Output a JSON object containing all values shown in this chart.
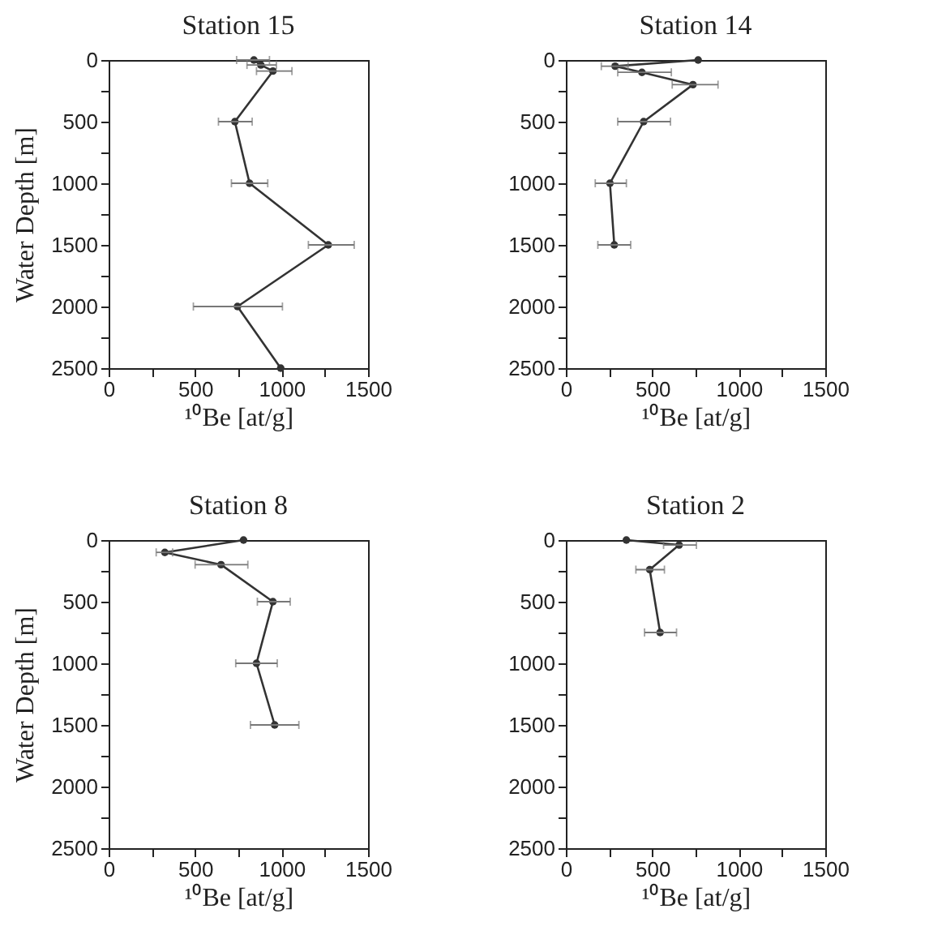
{
  "chart_data": [
    {
      "type": "line",
      "title": "Station 15",
      "xlabel": "¹⁰Be [at/g]",
      "ylabel": "Water Depth [m]",
      "color": "#333333",
      "marker": "circle",
      "line_style": "solid",
      "x": [
        840,
        880,
        950,
        730,
        815,
        1270,
        745,
        995
      ],
      "values": [
        0,
        40,
        90,
        500,
        1000,
        1500,
        2000,
        2500
      ],
      "xerrors": [
        [
          740,
          930
        ],
        [
          800,
          970
        ],
        [
          855,
          1060
        ],
        [
          635,
          830
        ],
        [
          710,
          920
        ],
        [
          1155,
          1420
        ],
        [
          490,
          1005
        ],
        null
      ],
      "xlim": [
        0,
        1500
      ],
      "xticks": [
        0,
        {
          "value": 250,
          "label": null
        },
        500,
        {
          "value": 750,
          "label": null
        },
        1000,
        {
          "value": 1250,
          "label": null
        },
        1500
      ],
      "ylim": [
        2500,
        0
      ],
      "yticks": [
        0,
        {
          "value": 250,
          "label": null
        },
        500,
        {
          "value": 750,
          "label": null
        },
        1000,
        {
          "value": 1250,
          "label": null
        },
        1500,
        {
          "value": 1750,
          "label": null
        },
        2000,
        {
          "value": 2250,
          "label": null
        },
        2500
      ]
    },
    {
      "type": "line",
      "title": "Station 14",
      "xlabel": "¹⁰Be [at/g]",
      "color": "#333333",
      "marker": "circle",
      "line_style": "solid",
      "x": [
        765,
        285,
        440,
        735,
        450,
        255,
        280
      ],
      "values": [
        0,
        50,
        100,
        200,
        500,
        1000,
        1500
      ],
      "xerrors": [
        null,
        [
          205,
          360
        ],
        [
          300,
          610
        ],
        [
          615,
          880
        ],
        [
          300,
          605
        ],
        [
          170,
          350
        ],
        [
          185,
          375
        ]
      ],
      "xlim": [
        0,
        1500
      ],
      "xticks": [
        0,
        {
          "value": 250,
          "label": null
        },
        500,
        {
          "value": 750,
          "label": null
        },
        1000,
        {
          "value": 1250,
          "label": null
        },
        1500
      ],
      "ylim": [
        2500,
        0
      ],
      "yticks": [
        0,
        {
          "value": 250,
          "label": null
        },
        500,
        {
          "value": 750,
          "label": null
        },
        1000,
        {
          "value": 1250,
          "label": null
        },
        1500,
        {
          "value": 1750,
          "label": null
        },
        2000,
        {
          "value": 2250,
          "label": null
        },
        2500
      ]
    },
    {
      "type": "line",
      "title": "Station 8",
      "xlabel": "¹⁰Be [at/g]",
      "ylabel": "Water Depth [m]",
      "color": "#333333",
      "marker": "circle",
      "line_style": "solid",
      "x": [
        780,
        325,
        650,
        950,
        855,
        960
      ],
      "values": [
        0,
        100,
        200,
        500,
        1000,
        1500
      ],
      "xerrors": [
        null,
        [
          275,
          370
        ],
        [
          500,
          805
        ],
        [
          860,
          1050
        ],
        [
          735,
          975
        ],
        [
          820,
          1100
        ]
      ],
      "xlim": [
        0,
        1500
      ],
      "xticks": [
        0,
        {
          "value": 250,
          "label": null
        },
        500,
        {
          "value": 750,
          "label": null
        },
        1000,
        {
          "value": 1250,
          "label": null
        },
        1500
      ],
      "ylim": [
        2500,
        0
      ],
      "yticks": [
        0,
        {
          "value": 250,
          "label": null
        },
        500,
        {
          "value": 750,
          "label": null
        },
        1000,
        {
          "value": 1250,
          "label": null
        },
        1500,
        {
          "value": 1750,
          "label": null
        },
        2000,
        {
          "value": 2250,
          "label": null
        },
        2500
      ]
    },
    {
      "type": "line",
      "title": "Station 2",
      "xlabel": "¹⁰Be [at/g]",
      "color": "#333333",
      "marker": "circle",
      "line_style": "solid",
      "x": [
        350,
        655,
        485,
        545
      ],
      "values": [
        0,
        40,
        240,
        750
      ],
      "xerrors": [
        null,
        [
          565,
          755
        ],
        [
          405,
          570
        ],
        [
          455,
          640
        ]
      ],
      "xlim": [
        0,
        1500
      ],
      "xticks": [
        0,
        {
          "value": 250,
          "label": null
        },
        500,
        {
          "value": 750,
          "label": null
        },
        1000,
        {
          "value": 1250,
          "label": null
        },
        1500
      ],
      "ylim": [
        2500,
        0
      ],
      "yticks": [
        0,
        {
          "value": 250,
          "label": null
        },
        500,
        {
          "value": 750,
          "label": null
        },
        1000,
        {
          "value": 1250,
          "label": null
        },
        1500,
        {
          "value": 1750,
          "label": null
        },
        2000,
        {
          "value": 2250,
          "label": null
        },
        2500
      ]
    }
  ]
}
